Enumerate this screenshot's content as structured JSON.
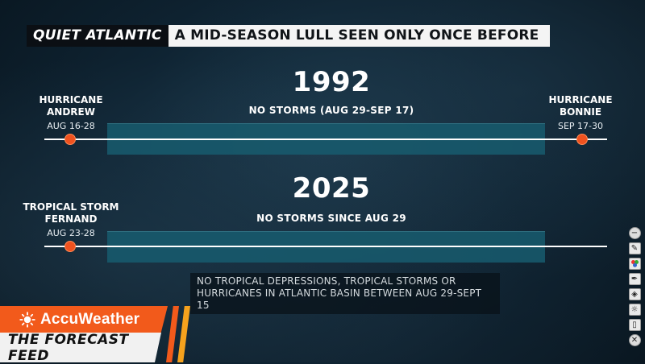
{
  "banner": {
    "tag": "QUIET ATLANTIC",
    "title": "A MID-SEASON LULL SEEN ONLY ONCE BEFORE"
  },
  "timeline_1992": {
    "year": "1992",
    "caption": "NO STORMS (AUG 29-SEP 17)",
    "left_storm": {
      "name_line1": "HURRICANE",
      "name_line2": "ANDREW",
      "dates": "AUG 16-28"
    },
    "right_storm": {
      "name_line1": "HURRICANE",
      "name_line2": "BONNIE",
      "dates": "SEP 17-30"
    }
  },
  "timeline_2025": {
    "year": "2025",
    "caption": "NO STORMS SINCE AUG 29",
    "left_storm": {
      "name_line1": "TROPICAL STORM",
      "name_line2": "FERNAND",
      "dates": "AUG 23-28"
    }
  },
  "note": {
    "line1": "NO TROPICAL DEPRESSIONS, TROPICAL STORMS OR",
    "line2": "HURRICANES IN ATLANTIC BASIN BETWEEN AUG 29-SEPT 15"
  },
  "branding": {
    "brand": "AccuWeather",
    "show": "THE FORECAST FEED",
    "colors": {
      "orange": "#f25a1b",
      "amber": "#f6a21d",
      "bar_teal": "#185c6e",
      "storm_dot": "#f0521f"
    }
  },
  "toolbar": {
    "icons": [
      "minus-icon",
      "pen-icon",
      "color-palette-icon",
      "highlighter-icon",
      "fill-icon",
      "brightness-icon",
      "eraser-icon",
      "close-icon"
    ]
  }
}
